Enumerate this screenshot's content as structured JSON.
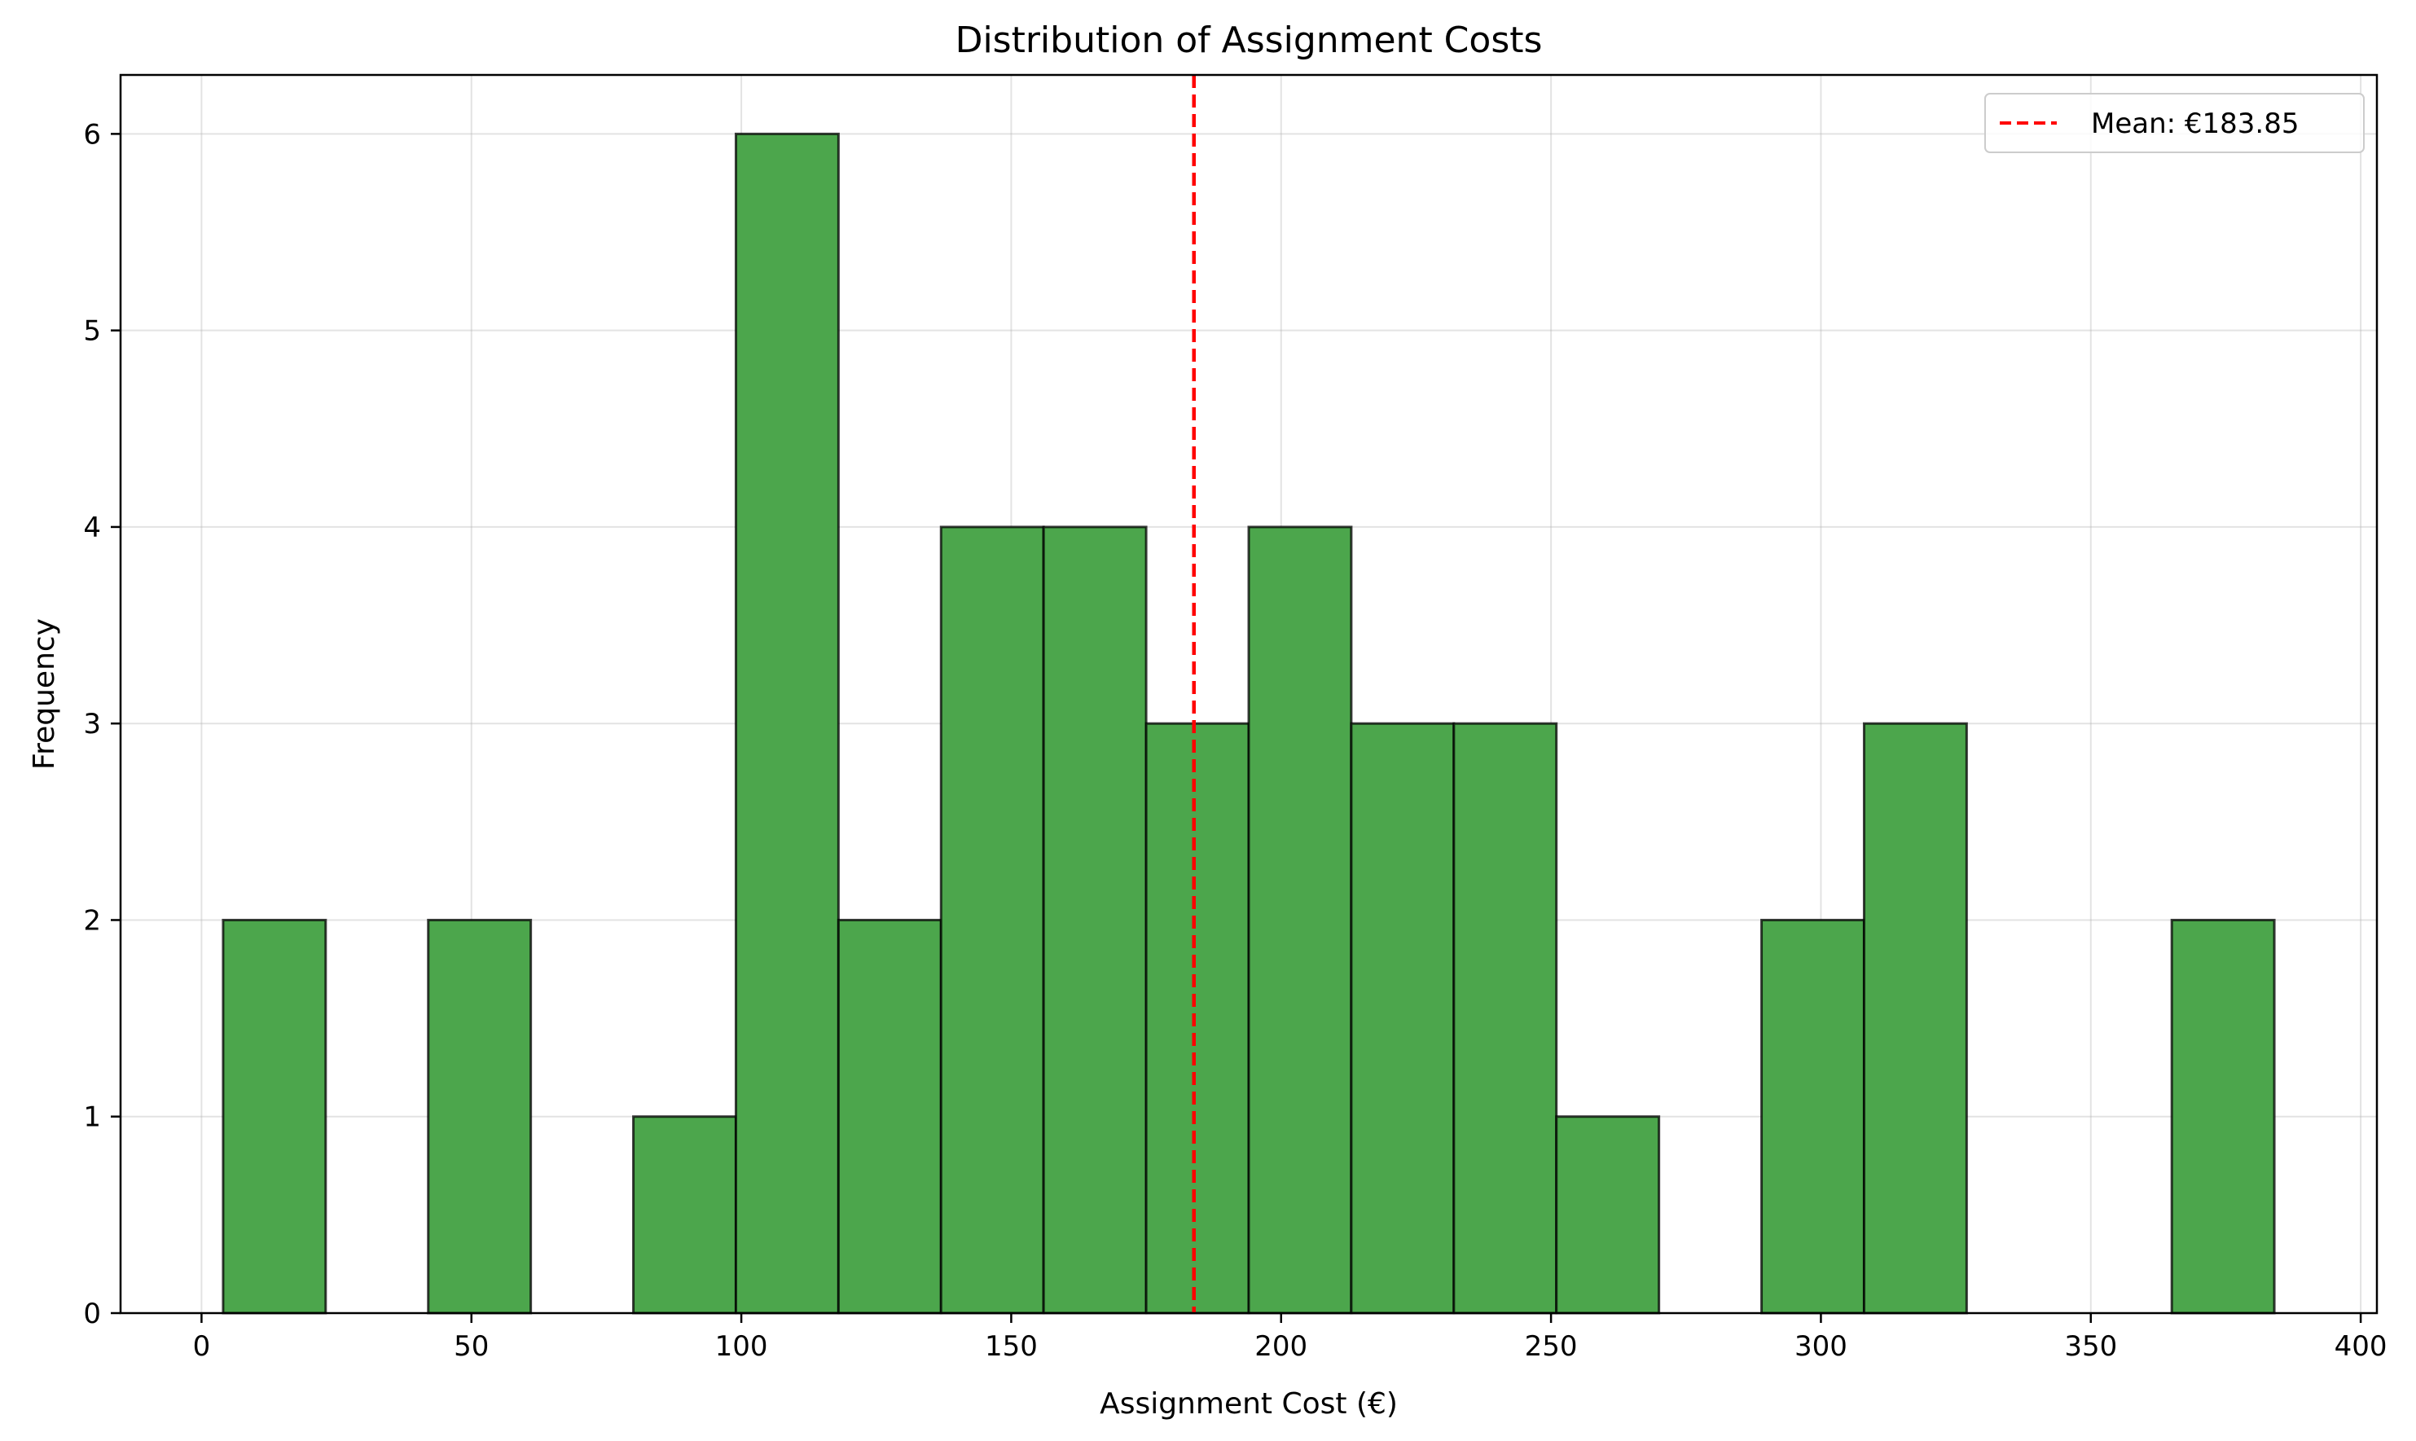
{
  "chart_data": {
    "type": "bar",
    "title": "Distribution of Assignment Costs",
    "xlabel": "Assignment Cost (€)",
    "ylabel": "Frequency",
    "xlim": [
      -15,
      403
    ],
    "ylim": [
      0,
      6.3
    ],
    "xticks": [
      0,
      50,
      100,
      150,
      200,
      250,
      300,
      350,
      400
    ],
    "yticks": [
      0,
      1,
      2,
      3,
      4,
      5,
      6
    ],
    "grid": true,
    "bar_color": "#4ca64c",
    "edge_color": "#000000",
    "bins": [
      {
        "x0": 4,
        "x1": 23,
        "count": 2
      },
      {
        "x0": 23,
        "x1": 42,
        "count": 0
      },
      {
        "x0": 42,
        "x1": 61,
        "count": 2
      },
      {
        "x0": 61,
        "x1": 80,
        "count": 0
      },
      {
        "x0": 80,
        "x1": 99,
        "count": 1
      },
      {
        "x0": 99,
        "x1": 118,
        "count": 6
      },
      {
        "x0": 118,
        "x1": 137,
        "count": 2
      },
      {
        "x0": 137,
        "x1": 156,
        "count": 4
      },
      {
        "x0": 156,
        "x1": 175,
        "count": 4
      },
      {
        "x0": 175,
        "x1": 194,
        "count": 3
      },
      {
        "x0": 194,
        "x1": 213,
        "count": 4
      },
      {
        "x0": 213,
        "x1": 232,
        "count": 3
      },
      {
        "x0": 232,
        "x1": 251,
        "count": 3
      },
      {
        "x0": 251,
        "x1": 270,
        "count": 1
      },
      {
        "x0": 270,
        "x1": 289,
        "count": 0
      },
      {
        "x0": 289,
        "x1": 308,
        "count": 2
      },
      {
        "x0": 308,
        "x1": 327,
        "count": 3
      },
      {
        "x0": 327,
        "x1": 346,
        "count": 0
      },
      {
        "x0": 346,
        "x1": 365,
        "count": 0
      },
      {
        "x0": 365,
        "x1": 384,
        "count": 2
      }
    ],
    "mean_line": {
      "value": 183.85,
      "label": "Mean: €183.85",
      "color": "#ff0000",
      "style": "dashed"
    },
    "legend_position": "top-right"
  }
}
